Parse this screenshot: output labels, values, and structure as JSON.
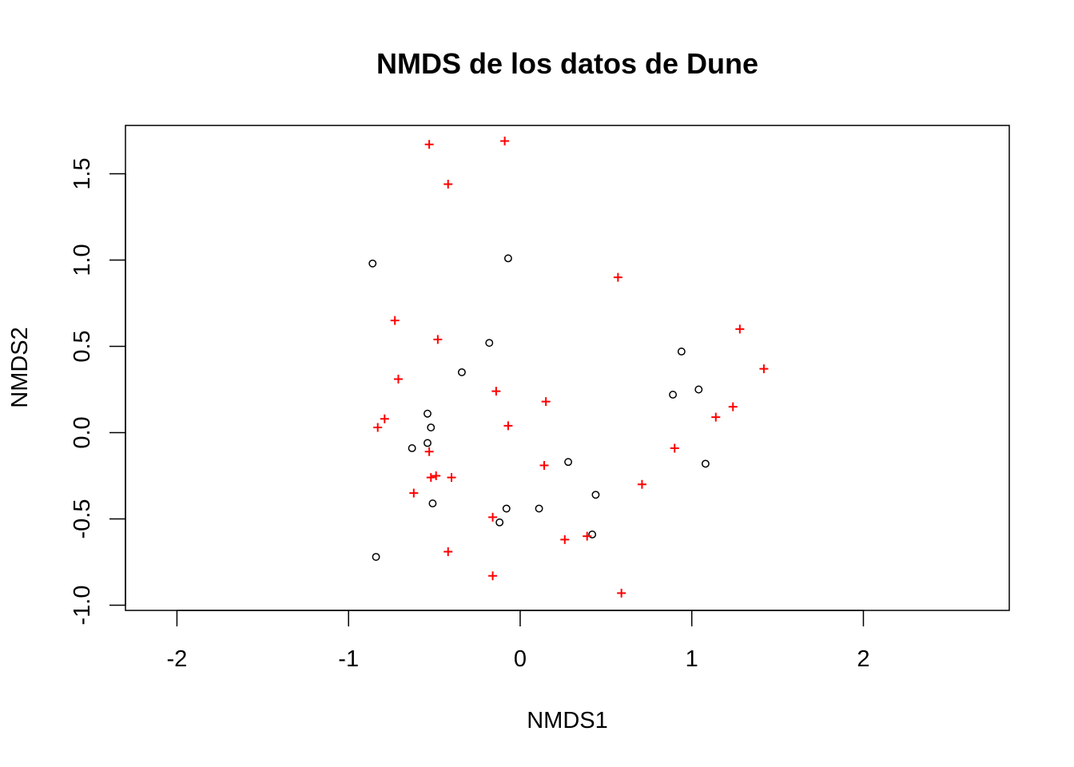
{
  "chart_data": {
    "type": "scatter",
    "title": "NMDS de los datos de Dune",
    "xlabel": "NMDS1",
    "ylabel": "NMDS2",
    "xlim": [
      -2.3,
      2.85
    ],
    "ylim": [
      -1.03,
      1.78
    ],
    "x_ticks": [
      -2,
      -1,
      0,
      1,
      2
    ],
    "x_tick_labels": [
      "-2",
      "-1",
      "0",
      "1",
      "2"
    ],
    "y_ticks": [
      -1.0,
      -0.5,
      0.0,
      0.5,
      1.0,
      1.5
    ],
    "y_tick_labels": [
      "-1.0",
      "-0.5",
      "0.0",
      "0.5",
      "1.0",
      "1.5"
    ],
    "grid": false,
    "legend": "none",
    "series": [
      {
        "marker": "open-circle",
        "color": "#000000",
        "points": [
          {
            "x": -0.86,
            "y": 0.98
          },
          {
            "x": -0.07,
            "y": 1.01
          },
          {
            "x": -0.18,
            "y": 0.52
          },
          {
            "x": -0.34,
            "y": 0.35
          },
          {
            "x": -0.54,
            "y": 0.11
          },
          {
            "x": -0.52,
            "y": 0.03
          },
          {
            "x": -0.54,
            "y": -0.06
          },
          {
            "x": -0.63,
            "y": -0.09
          },
          {
            "x": -0.51,
            "y": -0.41
          },
          {
            "x": -0.08,
            "y": -0.44
          },
          {
            "x": -0.12,
            "y": -0.52
          },
          {
            "x": 0.11,
            "y": -0.44
          },
          {
            "x": 0.28,
            "y": -0.17
          },
          {
            "x": 0.44,
            "y": -0.36
          },
          {
            "x": 0.42,
            "y": -0.59
          },
          {
            "x": -0.84,
            "y": -0.72
          },
          {
            "x": 0.94,
            "y": 0.47
          },
          {
            "x": 0.89,
            "y": 0.22
          },
          {
            "x": 1.04,
            "y": 0.25
          },
          {
            "x": 1.08,
            "y": -0.18
          }
        ]
      },
      {
        "marker": "plus",
        "color": "#ff0000",
        "points": [
          {
            "x": -0.53,
            "y": 1.67
          },
          {
            "x": -0.09,
            "y": 1.69
          },
          {
            "x": -0.42,
            "y": 1.44
          },
          {
            "x": 0.57,
            "y": 0.9
          },
          {
            "x": -0.73,
            "y": 0.65
          },
          {
            "x": -0.48,
            "y": 0.54
          },
          {
            "x": 1.28,
            "y": 0.6
          },
          {
            "x": -0.71,
            "y": 0.31
          },
          {
            "x": 1.42,
            "y": 0.37
          },
          {
            "x": -0.14,
            "y": 0.24
          },
          {
            "x": 0.15,
            "y": 0.18
          },
          {
            "x": 1.24,
            "y": 0.15
          },
          {
            "x": 1.14,
            "y": 0.09
          },
          {
            "x": -0.79,
            "y": 0.08
          },
          {
            "x": -0.83,
            "y": 0.03
          },
          {
            "x": -0.07,
            "y": 0.04
          },
          {
            "x": -0.53,
            "y": -0.11
          },
          {
            "x": 0.9,
            "y": -0.09
          },
          {
            "x": 0.14,
            "y": -0.19
          },
          {
            "x": -0.52,
            "y": -0.26
          },
          {
            "x": -0.49,
            "y": -0.25
          },
          {
            "x": -0.4,
            "y": -0.26
          },
          {
            "x": 0.71,
            "y": -0.3
          },
          {
            "x": -0.62,
            "y": -0.35
          },
          {
            "x": -0.16,
            "y": -0.49
          },
          {
            "x": 0.26,
            "y": -0.62
          },
          {
            "x": 0.39,
            "y": -0.6
          },
          {
            "x": -0.42,
            "y": -0.69
          },
          {
            "x": -0.16,
            "y": -0.83
          },
          {
            "x": 0.59,
            "y": -0.93
          }
        ]
      }
    ]
  }
}
